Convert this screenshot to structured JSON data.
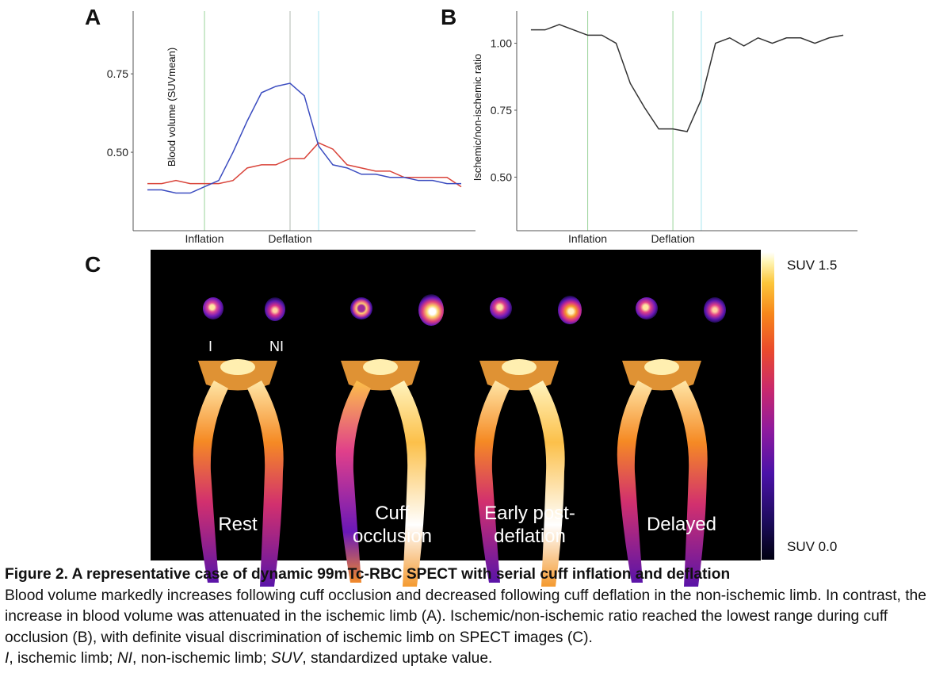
{
  "panels": {
    "a_letter": "A",
    "b_letter": "B",
    "c_letter": "C"
  },
  "chart_data": [
    {
      "type": "line",
      "panel": "A",
      "ylabel": "Blood volume (SUVmean)",
      "yticks": [
        "0.75",
        "0.50"
      ],
      "ytick_values": [
        0.75,
        0.5
      ],
      "ylim": [
        0.25,
        0.95
      ],
      "xlim": [
        0,
        24
      ],
      "grid": false,
      "markers": [
        {
          "label": "Inflation",
          "x": 5,
          "color": "#9ad39a"
        },
        {
          "label": "Deflation",
          "x": 11,
          "color": "#b0b8b0"
        },
        {
          "label": "",
          "x": 13,
          "color": "#a8e4f0"
        }
      ],
      "series": [
        {
          "color": "#d9443a",
          "x": [
            1,
            2,
            3,
            4,
            5,
            6,
            7,
            8,
            9,
            10,
            11,
            12,
            13,
            14,
            15,
            16,
            17,
            18,
            19,
            20,
            21,
            22,
            23
          ],
          "values": [
            0.4,
            0.4,
            0.41,
            0.4,
            0.4,
            0.4,
            0.41,
            0.45,
            0.46,
            0.46,
            0.48,
            0.48,
            0.53,
            0.51,
            0.46,
            0.45,
            0.44,
            0.44,
            0.42,
            0.42,
            0.42,
            0.42,
            0.39
          ]
        },
        {
          "color": "#3b4cc0",
          "x": [
            1,
            2,
            3,
            4,
            5,
            6,
            7,
            8,
            9,
            10,
            11,
            12,
            13,
            14,
            15,
            16,
            17,
            18,
            19,
            20,
            21,
            22,
            23
          ],
          "values": [
            0.38,
            0.38,
            0.37,
            0.37,
            0.39,
            0.41,
            0.5,
            0.6,
            0.69,
            0.71,
            0.72,
            0.68,
            0.52,
            0.46,
            0.45,
            0.43,
            0.43,
            0.42,
            0.42,
            0.41,
            0.41,
            0.4,
            0.4
          ]
        }
      ]
    },
    {
      "type": "line",
      "panel": "B",
      "ylabel": "Ischemic/non-ischemic ratio",
      "yticks": [
        "1.00",
        "0.75",
        "0.50"
      ],
      "ytick_values": [
        1.0,
        0.75,
        0.5
      ],
      "ylim": [
        0.3,
        1.12
      ],
      "xlim": [
        0,
        24
      ],
      "grid": false,
      "markers": [
        {
          "label": "Inflation",
          "x": 5,
          "color": "#9ad39a"
        },
        {
          "label": "Deflation",
          "x": 11,
          "color": "#9ad39a"
        },
        {
          "label": "",
          "x": 13,
          "color": "#a8e4f0"
        }
      ],
      "series": [
        {
          "color": "#333333",
          "x": [
            1,
            2,
            3,
            4,
            5,
            6,
            7,
            8,
            9,
            10,
            11,
            12,
            13,
            14,
            15,
            16,
            17,
            18,
            19,
            20,
            21,
            22,
            23
          ],
          "values": [
            1.05,
            1.05,
            1.07,
            1.05,
            1.03,
            1.03,
            1.0,
            0.85,
            0.76,
            0.68,
            0.68,
            0.67,
            0.79,
            1.0,
            1.02,
            0.99,
            1.02,
            1.0,
            1.02,
            1.02,
            1.0,
            1.02,
            1.03
          ]
        }
      ]
    }
  ],
  "panel_c": {
    "limb_labels": {
      "ischemic": "I",
      "non_ischemic": "NI"
    },
    "conditions": [
      "Rest",
      "Cuff occlusion",
      "Early post-deflation",
      "Delayed"
    ],
    "colorbar": {
      "max_label": "SUV 1.5",
      "min_label": "SUV 0.0"
    }
  },
  "caption": {
    "title": "Figure 2. A representative case of dynamic 99mTc-RBC SPECT with serial cuff inflation and deflation",
    "body": "Blood volume markedly increases following cuff occlusion and decreased following cuff deflation in the non-ischemic limb. In contrast, the increase in blood volume was attenuated in the ischemic limb (A). Ischemic/non-ischemic ratio reached the lowest range during cuff occlusion (B), with definite visual discrimination of ischemic limb on SPECT images (C).",
    "abbrev": [
      {
        "term": "I",
        "def": ", ischemic limb; "
      },
      {
        "term": "NI",
        "def": ", non-ischemic limb; "
      },
      {
        "term": "SUV",
        "def": ", standardized uptake value."
      }
    ]
  }
}
